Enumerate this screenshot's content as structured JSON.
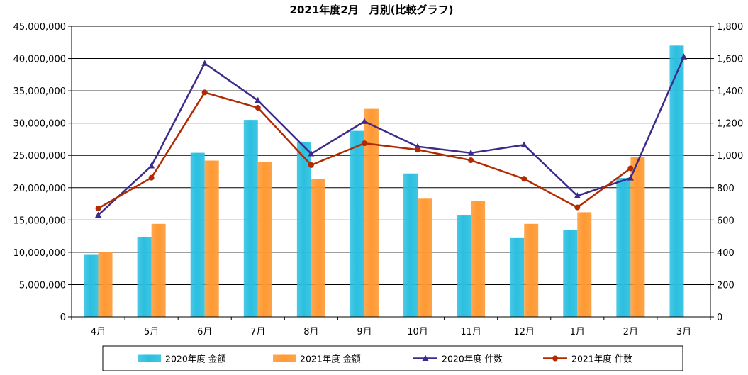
{
  "chart_data": {
    "type": "bar",
    "title": "2021年度2月　月別(比較グラフ)",
    "categories": [
      "4月",
      "5月",
      "6月",
      "7月",
      "8月",
      "9月",
      "10月",
      "11月",
      "12月",
      "1月",
      "2月",
      "3月"
    ],
    "y_left": {
      "ylim": [
        0,
        45000000
      ],
      "step": 5000000,
      "tick_labels": [
        "0",
        "5,000,000",
        "10,000,000",
        "15,000,000",
        "20,000,000",
        "25,000,000",
        "30,000,000",
        "35,000,000",
        "40,000,000",
        "45,000,000"
      ]
    },
    "y_right": {
      "ylim": [
        0,
        1800
      ],
      "step": 200,
      "tick_labels": [
        "0",
        "200",
        "400",
        "600",
        "800",
        "1,000",
        "1,200",
        "1,400",
        "1,600",
        "1,800"
      ]
    },
    "bar_series": [
      {
        "name": "2020年度 金額",
        "color": "#2bbfe0",
        "axis": "left",
        "values": [
          9600000,
          12300000,
          25400000,
          30500000,
          27000000,
          28800000,
          22200000,
          15800000,
          12200000,
          13400000,
          21500000,
          42000000
        ]
      },
      {
        "name": "2021年度 金額",
        "color": "#ff9933",
        "axis": "left",
        "values": [
          10000000,
          14400000,
          24200000,
          24000000,
          21300000,
          32200000,
          18300000,
          17900000,
          14400000,
          16200000,
          24800000,
          null
        ]
      }
    ],
    "line_series": [
      {
        "name": "2020年度 件数",
        "color": "#3d2a8c",
        "marker": "triangle",
        "axis": "right",
        "values": [
          630,
          935,
          1570,
          1340,
          1010,
          1210,
          1055,
          1015,
          1065,
          750,
          860,
          1610
        ]
      },
      {
        "name": "2021年度 件数",
        "color": "#b22a00",
        "marker": "circle",
        "axis": "right",
        "values": [
          672,
          862,
          1390,
          1295,
          940,
          1075,
          1035,
          970,
          855,
          678,
          920,
          null
        ]
      }
    ],
    "grid": {
      "horizontal": true,
      "vertical": false
    },
    "legend_position": "bottom"
  }
}
